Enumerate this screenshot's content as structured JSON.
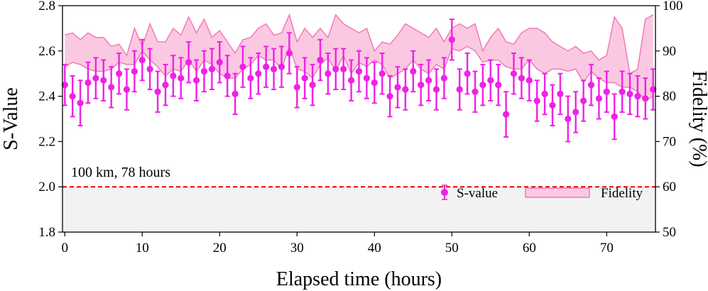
{
  "chart_data": {
    "type": "scatter",
    "xlabel": "Elapsed time (hours)",
    "ylabel": "S-Value",
    "y2label": "Fidelity (%)",
    "xlim": [
      -0.3,
      76.3
    ],
    "ylim": [
      1.8,
      2.8
    ],
    "y2lim": [
      50,
      100
    ],
    "xticks": [
      0,
      10,
      20,
      30,
      40,
      50,
      60,
      70
    ],
    "yticks": [
      1.8,
      2.0,
      2.2,
      2.4,
      2.6,
      2.8
    ],
    "y2ticks": [
      50,
      60,
      70,
      80,
      90,
      100
    ],
    "xtick_labels": [
      "0",
      "10",
      "20",
      "30",
      "40",
      "50",
      "60",
      "70"
    ],
    "ytick_labels": [
      "1.8",
      "2.0",
      "2.2",
      "2.4",
      "2.6",
      "2.8"
    ],
    "y2tick_labels": [
      "50",
      "60",
      "70",
      "80",
      "90",
      "100"
    ],
    "annotation": "100 km, 78 hours",
    "threshold": {
      "value": 2.0,
      "color": "#e60000",
      "style": "dashed"
    },
    "shaded_region": {
      "from": 1.8,
      "to": 2.0,
      "color": "#f2f2f2"
    },
    "legend": {
      "position": "lower-right",
      "entries": [
        "S-value",
        "Fidelity"
      ]
    },
    "colors": {
      "s_value": "#f021e6",
      "fidelity_fill": "#fbc8e2",
      "fidelity_line": "#f27ab8",
      "axis": "#000000"
    },
    "series": [
      {
        "name": "S-value",
        "axis": "left",
        "x": [
          0,
          1,
          2,
          3,
          4,
          5,
          6,
          7,
          8,
          9,
          10,
          11,
          12,
          13,
          14,
          15,
          16,
          17,
          18,
          19,
          20,
          21,
          22,
          23,
          24,
          25,
          26,
          27,
          28,
          29,
          30,
          31,
          32,
          33,
          34,
          35,
          36,
          37,
          38,
          39,
          40,
          41,
          42,
          43,
          44,
          45,
          46,
          47,
          48,
          49,
          50,
          51,
          52,
          53,
          54,
          55,
          56,
          57,
          58,
          59,
          60,
          61,
          62,
          63,
          64,
          65,
          66,
          67,
          68,
          69,
          70,
          71,
          72,
          73,
          74,
          75,
          76
        ],
        "y": [
          2.45,
          2.4,
          2.37,
          2.46,
          2.48,
          2.47,
          2.44,
          2.5,
          2.43,
          2.51,
          2.56,
          2.52,
          2.42,
          2.45,
          2.49,
          2.48,
          2.55,
          2.47,
          2.51,
          2.52,
          2.55,
          2.49,
          2.41,
          2.53,
          2.48,
          2.5,
          2.53,
          2.52,
          2.53,
          2.59,
          2.44,
          2.48,
          2.45,
          2.56,
          2.5,
          2.52,
          2.52,
          2.47,
          2.51,
          2.48,
          2.46,
          2.5,
          2.4,
          2.44,
          2.43,
          2.51,
          2.45,
          2.47,
          2.43,
          2.48,
          2.65,
          2.43,
          2.5,
          2.42,
          2.45,
          2.47,
          2.45,
          2.32,
          2.5,
          2.48,
          2.47,
          2.38,
          2.41,
          2.36,
          2.41,
          2.3,
          2.33,
          2.38,
          2.45,
          2.39,
          2.42,
          2.31,
          2.42,
          2.41,
          2.4,
          2.39,
          2.43
        ],
        "yerr": [
          0.09,
          0.09,
          0.1,
          0.09,
          0.09,
          0.09,
          0.09,
          0.09,
          0.09,
          0.09,
          0.09,
          0.09,
          0.09,
          0.09,
          0.09,
          0.09,
          0.09,
          0.09,
          0.09,
          0.09,
          0.09,
          0.09,
          0.09,
          0.09,
          0.09,
          0.09,
          0.09,
          0.09,
          0.09,
          0.09,
          0.09,
          0.09,
          0.09,
          0.09,
          0.09,
          0.09,
          0.09,
          0.09,
          0.09,
          0.09,
          0.09,
          0.09,
          0.09,
          0.09,
          0.09,
          0.09,
          0.09,
          0.09,
          0.09,
          0.09,
          0.09,
          0.09,
          0.09,
          0.09,
          0.09,
          0.09,
          0.09,
          0.1,
          0.09,
          0.09,
          0.09,
          0.09,
          0.09,
          0.09,
          0.09,
          0.1,
          0.09,
          0.09,
          0.09,
          0.09,
          0.09,
          0.1,
          0.09,
          0.09,
          0.09,
          0.09,
          0.09
        ]
      },
      {
        "name": "Fidelity",
        "axis": "right",
        "x": [
          0,
          1,
          2,
          3,
          4,
          5,
          6,
          7,
          8,
          9,
          10,
          11,
          12,
          13,
          14,
          15,
          16,
          17,
          18,
          19,
          20,
          21,
          22,
          23,
          24,
          25,
          26,
          27,
          28,
          29,
          30,
          31,
          32,
          33,
          34,
          35,
          36,
          37,
          38,
          39,
          40,
          41,
          42,
          43,
          44,
          45,
          46,
          47,
          48,
          49,
          50,
          51,
          52,
          53,
          54,
          55,
          56,
          57,
          58,
          59,
          60,
          61,
          62,
          63,
          64,
          65,
          66,
          67,
          68,
          69,
          70,
          71,
          72,
          73,
          74,
          75,
          76
        ],
        "upper": [
          93.5,
          94.0,
          92.5,
          94.0,
          93.0,
          93.0,
          91.0,
          91.5,
          89.0,
          95.0,
          91.0,
          96.0,
          92.0,
          92.0,
          95.0,
          93.5,
          97.5,
          94.0,
          97.0,
          93.0,
          94.5,
          92.0,
          89.5,
          92.5,
          93.0,
          95.0,
          96.0,
          93.5,
          94.0,
          98.0,
          92.0,
          95.0,
          93.0,
          95.0,
          93.0,
          98.0,
          96.0,
          95.0,
          94.0,
          95.0,
          90.0,
          92.0,
          91.5,
          93.5,
          96.0,
          95.0,
          94.0,
          93.0,
          95.0,
          92.0,
          95.0,
          96.0,
          95.0,
          96.0,
          90.0,
          93.0,
          95.0,
          92.0,
          91.5,
          94.0,
          95.0,
          95.0,
          94.0,
          92.0,
          91.0,
          90.0,
          91.0,
          89.5,
          90.0,
          88.0,
          89.0,
          97.5,
          95.0,
          85.0,
          86.0,
          97.0,
          98.0
        ],
        "lower": [
          86.5,
          87.5,
          87.0,
          86.0,
          85.5,
          85.5,
          86.0,
          87.5,
          87.0,
          87.0,
          90.0,
          88.0,
          86.5,
          84.5,
          86.0,
          85.5,
          88.0,
          85.5,
          88.0,
          87.0,
          85.0,
          84.0,
          84.0,
          86.0,
          87.0,
          89.0,
          88.0,
          88.0,
          86.0,
          91.0,
          86.0,
          85.5,
          84.0,
          87.0,
          88.5,
          85.5,
          89.0,
          85.0,
          87.5,
          86.5,
          88.0,
          87.0,
          84.0,
          85.0,
          86.0,
          88.0,
          86.0,
          85.0,
          87.0,
          86.0,
          90.5,
          90.0,
          91.0,
          90.0,
          87.5,
          88.0,
          88.0,
          86.5,
          86.0,
          86.0,
          88.0,
          86.0,
          85.0,
          86.0,
          86.0,
          85.5,
          86.0,
          83.0,
          85.5,
          84.0,
          83.0,
          83.0,
          82.0,
          82.0,
          81.0,
          79.0,
          80.0
        ]
      }
    ]
  }
}
